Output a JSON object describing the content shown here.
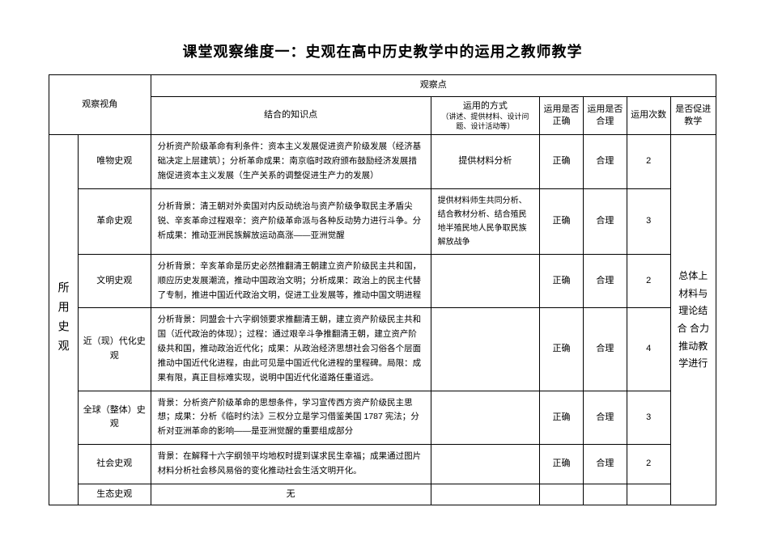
{
  "title": "课堂观察维度一：史观在高中历史教学中的运用之教师教学",
  "headers": {
    "perspective": "观察视角",
    "point": "观察点",
    "knowledge": "结合的知识点",
    "method": "运用的方式",
    "method_sub": "（讲述、提供材料、设计问题、设计活动等）",
    "correct": "运用是否正确",
    "reasonable": "运用是否合理",
    "count": "运用次数",
    "promote": "是否促进教学"
  },
  "sidebar": "所用史观",
  "rows": [
    {
      "label": "唯物史观",
      "content": "分析资产阶级革命有利条件：资本主义发展促进资产阶级发展（经济基础决定上层建筑）；分析革命成果：南京临时政府颁布鼓励经济发展措施促进资本主义发展（生产关系的调整促进生产力的发展）",
      "method": "提供材料分析",
      "correct": "正确",
      "reasonable": "合理",
      "count": "2"
    },
    {
      "label": "革命史观",
      "content": "分析背景：清王朝对外卖国对内反动统治与资产阶级争取民主矛盾尖锐、辛亥革命过程艰辛：资产阶级革命派与各种反动势力进行斗争。分析成果：推动亚洲民族解放运动高涨——亚洲觉醒",
      "method": "提供材料师生共同分析、结合教材分析、结合殖民地半殖民地人民争取民族解放战争",
      "correct": "正确",
      "reasonable": "合理",
      "count": "3"
    },
    {
      "label": "文明史观",
      "content": "分析背景：辛亥革命是历史必然推翻清王朝建立资产阶级民主共和国，顺应历史发展潮流，推动中国政治文明；分析成果：政治上的民主代替了专制，推进中国近代政治文明，促进工业发展等，推动中国文明进程",
      "method": "",
      "correct": "正确",
      "reasonable": "合理",
      "count": "2"
    },
    {
      "label": "近（现）代化史观",
      "content": "分析背景：同盟会十六字纲领要求推翻清王朝，建立资产阶级民主共和国（近代政治的体现）；过程：通过艰辛斗争推翻清王朝，建立资产阶级共和国，推动政治近代化；成果：从政治经济思想社会习俗各个层面推动中国近代化进程，由此可见是中国近代化进程的里程碑。局限：成果有限，真正目标难实现，说明中国近代化道路任重道远。",
      "method": "",
      "correct": "正确",
      "reasonable": "合理",
      "count": "4"
    },
    {
      "label": "全球（整体）史观",
      "content": "背景：分析资产阶级革命的思想条件，学习宣传西方资产阶级民主思想；成果：分析《临时约法》三权分立是学习借鉴美国 1787 宪法；分析对亚洲革命的影响——是亚洲觉醒的重要组成部分",
      "method": "",
      "correct": "正确",
      "reasonable": "合理",
      "count": "3"
    },
    {
      "label": "社会史观",
      "content": "背景：在解释十六字纲领平均地权时提到谋求民生幸福；成果通过图片材料分析社会移风易俗的变化推动社会生活文明开化。",
      "method": "",
      "correct": "正确",
      "reasonable": "合理",
      "count": "2"
    },
    {
      "label": "生态史观",
      "content": "无",
      "method": "",
      "correct": "",
      "reasonable": "",
      "count": ""
    }
  ],
  "summary": "总体上材料与理论结合 合力推动教学进行"
}
